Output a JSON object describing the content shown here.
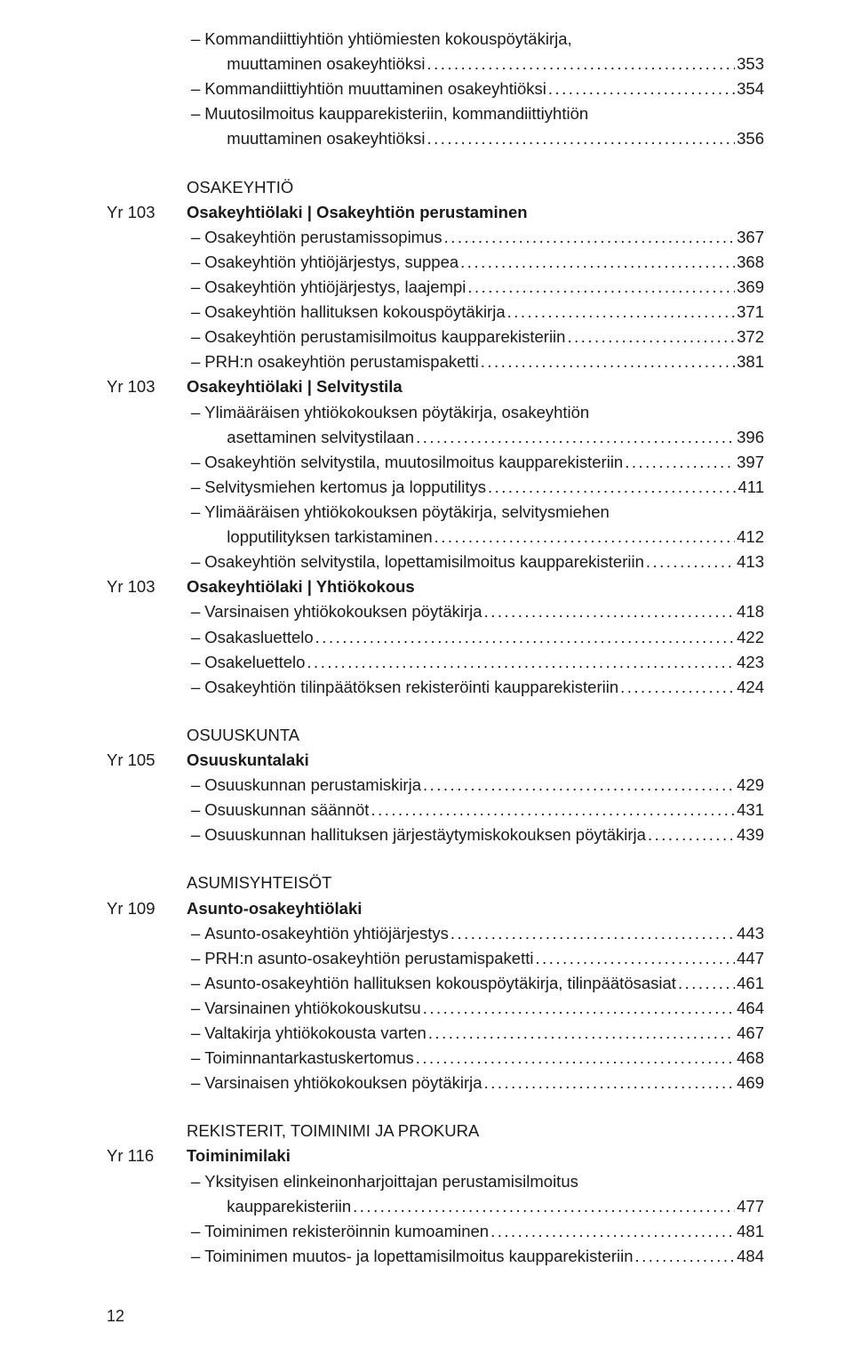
{
  "page_number": "12",
  "orphan": {
    "entries": [
      {
        "label1": "Kommandiittiyhtiön yhtiömiesten kokouspöytäkirja,",
        "label2": "muuttaminen osakeyhtiöksi",
        "page": "353",
        "wrap": true,
        "indent": false
      },
      {
        "label": "Kommandiittiyhtiön muuttaminen osakeyhtiöksi",
        "page": "354",
        "indent": false
      },
      {
        "label1": "Muutosilmoitus kaupparekisteriin, kommandiittiyhtiön",
        "label2": "muuttaminen osakeyhtiöksi",
        "page": "356",
        "wrap": true,
        "indent": false
      }
    ]
  },
  "sections": [
    {
      "heading": "OSAKEYHTIÖ",
      "subsections": [
        {
          "code": "Yr 103",
          "title": "Osakeyhtiölaki | Osakeyhtiön perustaminen",
          "entries": [
            {
              "label": "Osakeyhtiön perustamissopimus",
              "page": "367",
              "indent": false
            },
            {
              "label": "Osakeyhtiön yhtiöjärjestys, suppea",
              "page": "368",
              "indent": false
            },
            {
              "label": "Osakeyhtiön yhtiöjärjestys, laajempi",
              "page": "369",
              "indent": false
            },
            {
              "label": "Osakeyhtiön hallituksen kokouspöytäkirja",
              "page": "371",
              "indent": false
            },
            {
              "label": "Osakeyhtiön perustamisilmoitus kaupparekisteriin",
              "page": "372",
              "indent": false
            },
            {
              "label": "PRH:n osakeyhtiön perustamispaketti",
              "page": "381",
              "indent": false
            }
          ]
        },
        {
          "code": "Yr 103",
          "title": "Osakeyhtiölaki | Selvitystila",
          "entries": [
            {
              "label1": "Ylimääräisen yhtiökokouksen pöytäkirja, osakeyhtiön",
              "label2": "asettaminen selvitystilaan",
              "page": "396",
              "wrap": true,
              "indent": false
            },
            {
              "label": "Osakeyhtiön selvitystila, muutosilmoitus kaupparekisteriin",
              "page": "397",
              "indent": false
            },
            {
              "label": "Selvitysmiehen kertomus ja lopputilitys",
              "page": "411",
              "indent": false
            },
            {
              "label1": "Ylimääräisen yhtiökokouksen pöytäkirja, selvitysmiehen",
              "label2": "lopputilityksen tarkistaminen",
              "page": "412",
              "wrap": true,
              "indent": false
            },
            {
              "label": "Osakeyhtiön selvitystila, lopettamisilmoitus kaupparekisteriin",
              "page": "413",
              "indent": false
            }
          ]
        },
        {
          "code": "Yr 103",
          "title": "Osakeyhtiölaki | Yhtiökokous",
          "entries": [
            {
              "label": "Varsinaisen yhtiökokouksen pöytäkirja",
              "page": "418",
              "indent": false
            },
            {
              "label": "Osakasluettelo",
              "page": "422",
              "indent": false
            },
            {
              "label": "Osakeluettelo",
              "page": "423",
              "indent": false
            },
            {
              "label": "Osakeyhtiön tilinpäätöksen rekisteröinti kaupparekisteriin",
              "page": "424",
              "indent": false
            }
          ]
        }
      ]
    },
    {
      "heading": "OSUUSKUNTA",
      "subsections": [
        {
          "code": "Yr 105",
          "title": "Osuuskuntalaki",
          "entries": [
            {
              "label": "Osuuskunnan perustamiskirja",
              "page": "429",
              "indent": false
            },
            {
              "label": "Osuuskunnan säännöt",
              "page": "431",
              "indent": false
            },
            {
              "label": "Osuuskunnan hallituksen järjestäytymiskokouksen pöytäkirja",
              "page": "439",
              "indent": false
            }
          ]
        }
      ]
    },
    {
      "heading": "ASUMISYHTEISÖT",
      "subsections": [
        {
          "code": "Yr 109",
          "title": "Asunto-osakeyhtiölaki",
          "entries": [
            {
              "label": "Asunto-osakeyhtiön yhtiöjärjestys",
              "page": "443",
              "indent": false
            },
            {
              "label": "PRH:n asunto-osakeyhtiön perustamispaketti",
              "page": "447",
              "indent": false
            },
            {
              "label": "Asunto-osakeyhtiön hallituksen kokouspöytäkirja, tilinpäätösasiat",
              "page": "461",
              "indent": false,
              "tight": true
            },
            {
              "label": "Varsinainen yhtiökokouskutsu",
              "page": "464",
              "indent": false
            },
            {
              "label": "Valtakirja yhtiökokousta varten",
              "page": "467",
              "indent": false
            },
            {
              "label": "Toiminnantarkastuskertomus",
              "page": "468",
              "indent": false
            },
            {
              "label": "Varsinaisen yhtiökokouksen pöytäkirja",
              "page": "469",
              "indent": false
            }
          ]
        }
      ]
    },
    {
      "heading": "REKISTERIT, TOIMINIMI JA PROKURA",
      "subsections": [
        {
          "code": "Yr 116",
          "title": "Toiminimilaki",
          "entries": [
            {
              "label1": "Yksityisen elinkeinonharjoittajan perustamisilmoitus",
              "label2": "kaupparekisteriin",
              "page": "477",
              "wrap": true,
              "indent": false
            },
            {
              "label": "Toiminimen rekisteröinnin kumoaminen",
              "page": "481",
              "indent": false
            },
            {
              "label": "Toiminimen muutos- ja lopettamisilmoitus kaupparekisteriin",
              "page": "484",
              "indent": false
            }
          ]
        }
      ]
    }
  ]
}
